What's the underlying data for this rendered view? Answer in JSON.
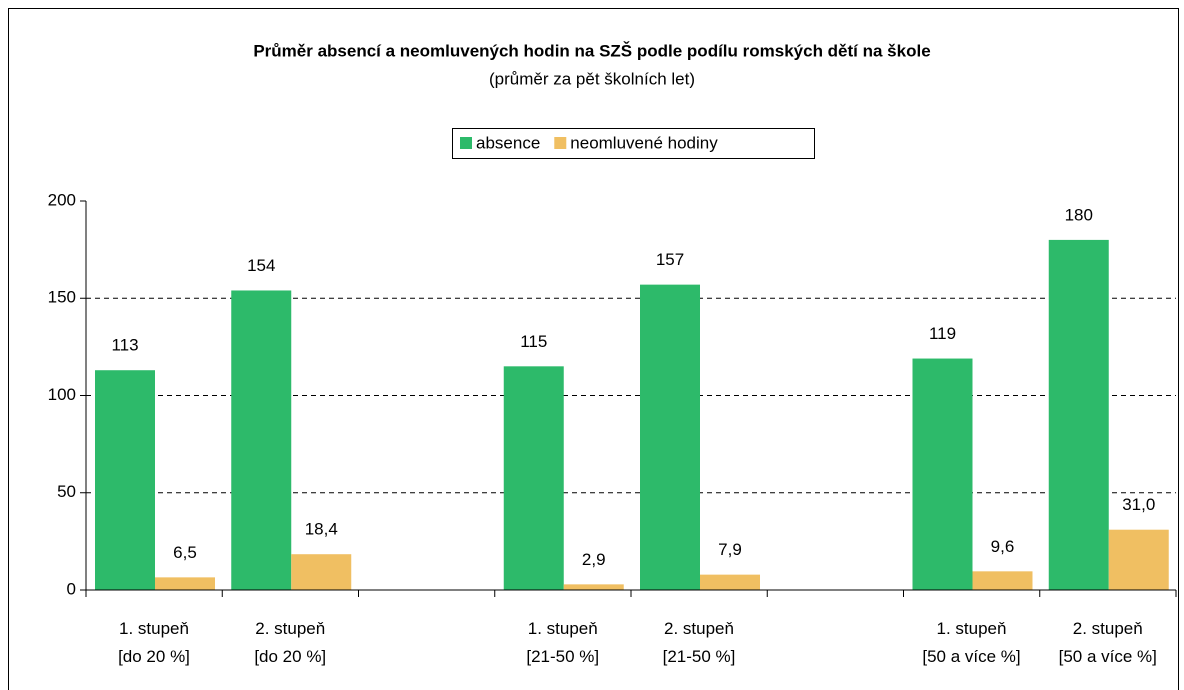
{
  "chart_data": {
    "type": "bar",
    "title": "Průměr absencí a neomluvených hodin na SZŠ podle podílu romských dětí na škole",
    "subtitle": "(průměr za pět školních let)",
    "categories": [
      "1. stupeň\n[do 20 %]",
      "2. stupeň\n[do 20 %]",
      null,
      "1. stupeň\n[21-50 %]",
      "2. stupeň\n[21-50 %]",
      null,
      "1. stupeň\n[50 a více %]",
      "2. stupeň\n[50 a více %]"
    ],
    "series": [
      {
        "name": "absence",
        "color": "#2dba6a",
        "values": [
          113,
          154,
          null,
          115,
          157,
          null,
          119,
          180
        ]
      },
      {
        "name": "neomluvené hodiny",
        "color": "#f0bf62",
        "values": [
          6.5,
          18.4,
          null,
          2.9,
          7.9,
          null,
          9.6,
          31.0
        ],
        "value_labels": [
          "6,5",
          "18,4",
          null,
          "2,9",
          "7,9",
          null,
          "9,6",
          "31,0"
        ]
      }
    ],
    "ylim": [
      0,
      200
    ],
    "yticks": [
      0,
      50,
      100,
      150,
      200
    ],
    "grid": true,
    "legend": "top"
  }
}
